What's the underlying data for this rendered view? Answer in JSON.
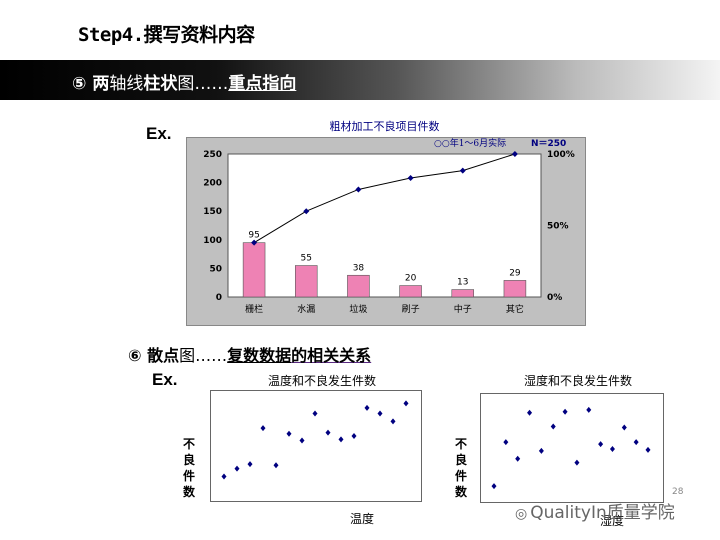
{
  "slide": {
    "title": "Step4.撰写资料内容",
    "page": "28"
  },
  "section5": {
    "num": "⑤",
    "lead": "两",
    "mid": "轴线",
    "bold2": "柱状",
    "tail": "图……",
    "link": "重点指向"
  },
  "section6": {
    "num": "⑥",
    "lead": "散点",
    "tail": "图……",
    "link1": "复数数据",
    "link2": "的相关关系"
  },
  "ex_label": "Ex.",
  "watermark": "QualityIn质量学院",
  "chart_data": [
    {
      "type": "bar",
      "title": "粗材加工不良项目件数",
      "subtitle": "○○年1～6月实际",
      "n_label": "N＝250",
      "categories": [
        "栅栏",
        "水漏",
        "垃圾",
        "刷子",
        "中子",
        "其它"
      ],
      "values": [
        95,
        55,
        38,
        20,
        13,
        29
      ],
      "ylim": [
        0,
        250
      ],
      "yticks": [
        "0",
        "50",
        "100",
        "150",
        "200",
        "250"
      ],
      "y2ticks": [
        "0%",
        "50%",
        "100%"
      ],
      "cumulative_percent": [
        38,
        60,
        75.2,
        83.2,
        88.4,
        100
      ],
      "bar_color": "#ee82b4",
      "line_color": "#000080"
    },
    {
      "type": "scatter",
      "title": "温度和不良发生件数",
      "xlabel": "温度",
      "ylabel": "不良件数",
      "points": [
        [
          1,
          1.2
        ],
        [
          2,
          1.9
        ],
        [
          3,
          2.3
        ],
        [
          4,
          5.5
        ],
        [
          5,
          2.2
        ],
        [
          6,
          5
        ],
        [
          7,
          4.4
        ],
        [
          8,
          6.8
        ],
        [
          9,
          5.1
        ],
        [
          10,
          4.5
        ],
        [
          11,
          4.8
        ],
        [
          12,
          7.3
        ],
        [
          13,
          6.8
        ],
        [
          14,
          6.1
        ],
        [
          15,
          7.7
        ]
      ],
      "color": "#000080"
    },
    {
      "type": "scatter",
      "title": "湿度和不良发生件数",
      "xlabel": "湿度",
      "ylabel": "不良件数",
      "points": [
        [
          1,
          0.5
        ],
        [
          2,
          5
        ],
        [
          3,
          3.3
        ],
        [
          4,
          8
        ],
        [
          5,
          4.1
        ],
        [
          6,
          6.6
        ],
        [
          7,
          8.1
        ],
        [
          8,
          2.9
        ],
        [
          9,
          8.3
        ],
        [
          10,
          4.8
        ],
        [
          11,
          4.3
        ],
        [
          12,
          6.5
        ],
        [
          13,
          5
        ],
        [
          14,
          4.2
        ]
      ],
      "color": "#000080"
    }
  ]
}
